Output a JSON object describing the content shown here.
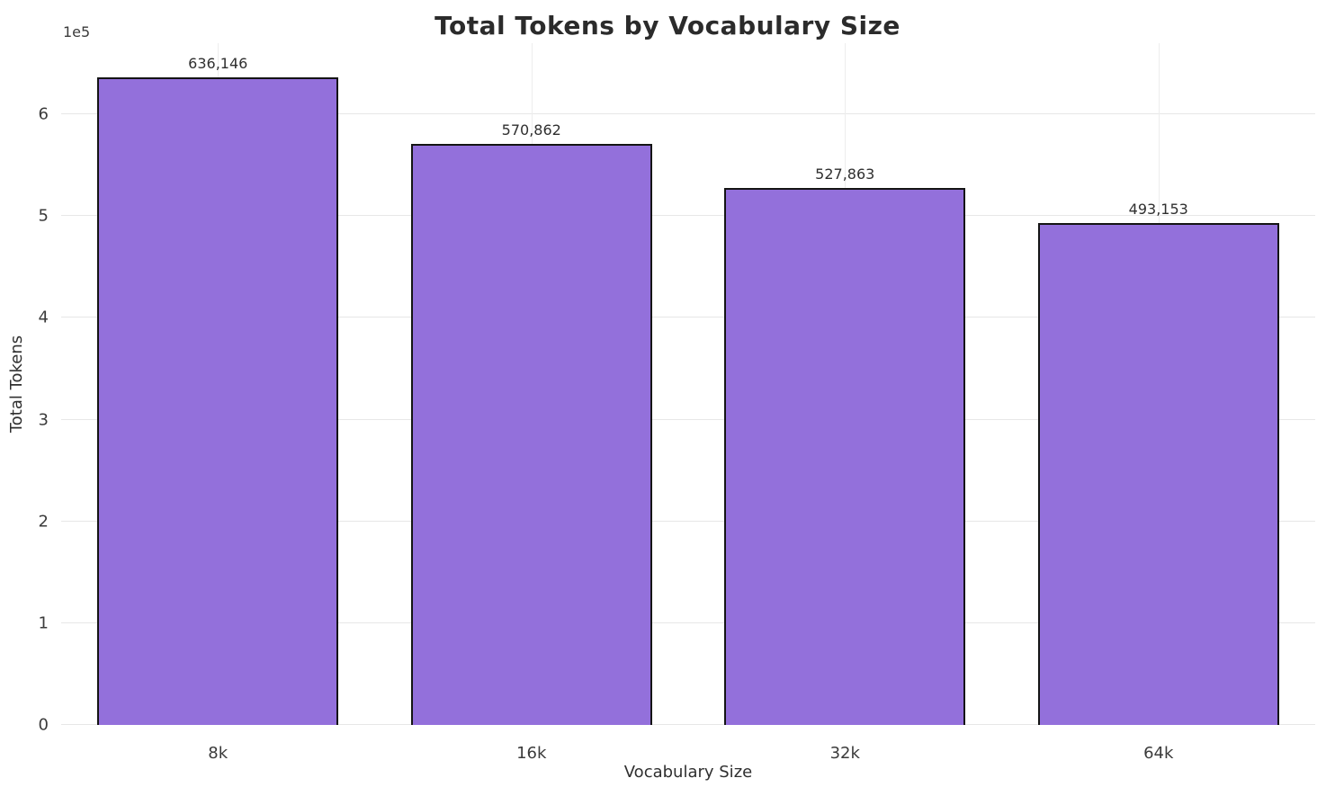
{
  "chart_data": {
    "type": "bar",
    "title": "Total Tokens by Vocabulary Size",
    "xlabel": "Vocabulary Size",
    "ylabel": "Total Tokens",
    "offset_text": "1e5",
    "categories": [
      "8k",
      "16k",
      "32k",
      "64k"
    ],
    "values": [
      636146,
      570862,
      527863,
      493153
    ],
    "value_labels": [
      "636,146",
      "570,862",
      "527,863",
      "493,153"
    ],
    "ylim": [
      0,
      670000
    ],
    "yticks": [
      0,
      100000,
      200000,
      300000,
      400000,
      500000,
      600000
    ],
    "ytick_labels": [
      "0",
      "1",
      "2",
      "3",
      "4",
      "5",
      "6"
    ],
    "grid": true,
    "legend": "none",
    "bar_color": "#9370DB",
    "bar_edge_color": "#141414",
    "bar_width_fraction": 0.77
  }
}
